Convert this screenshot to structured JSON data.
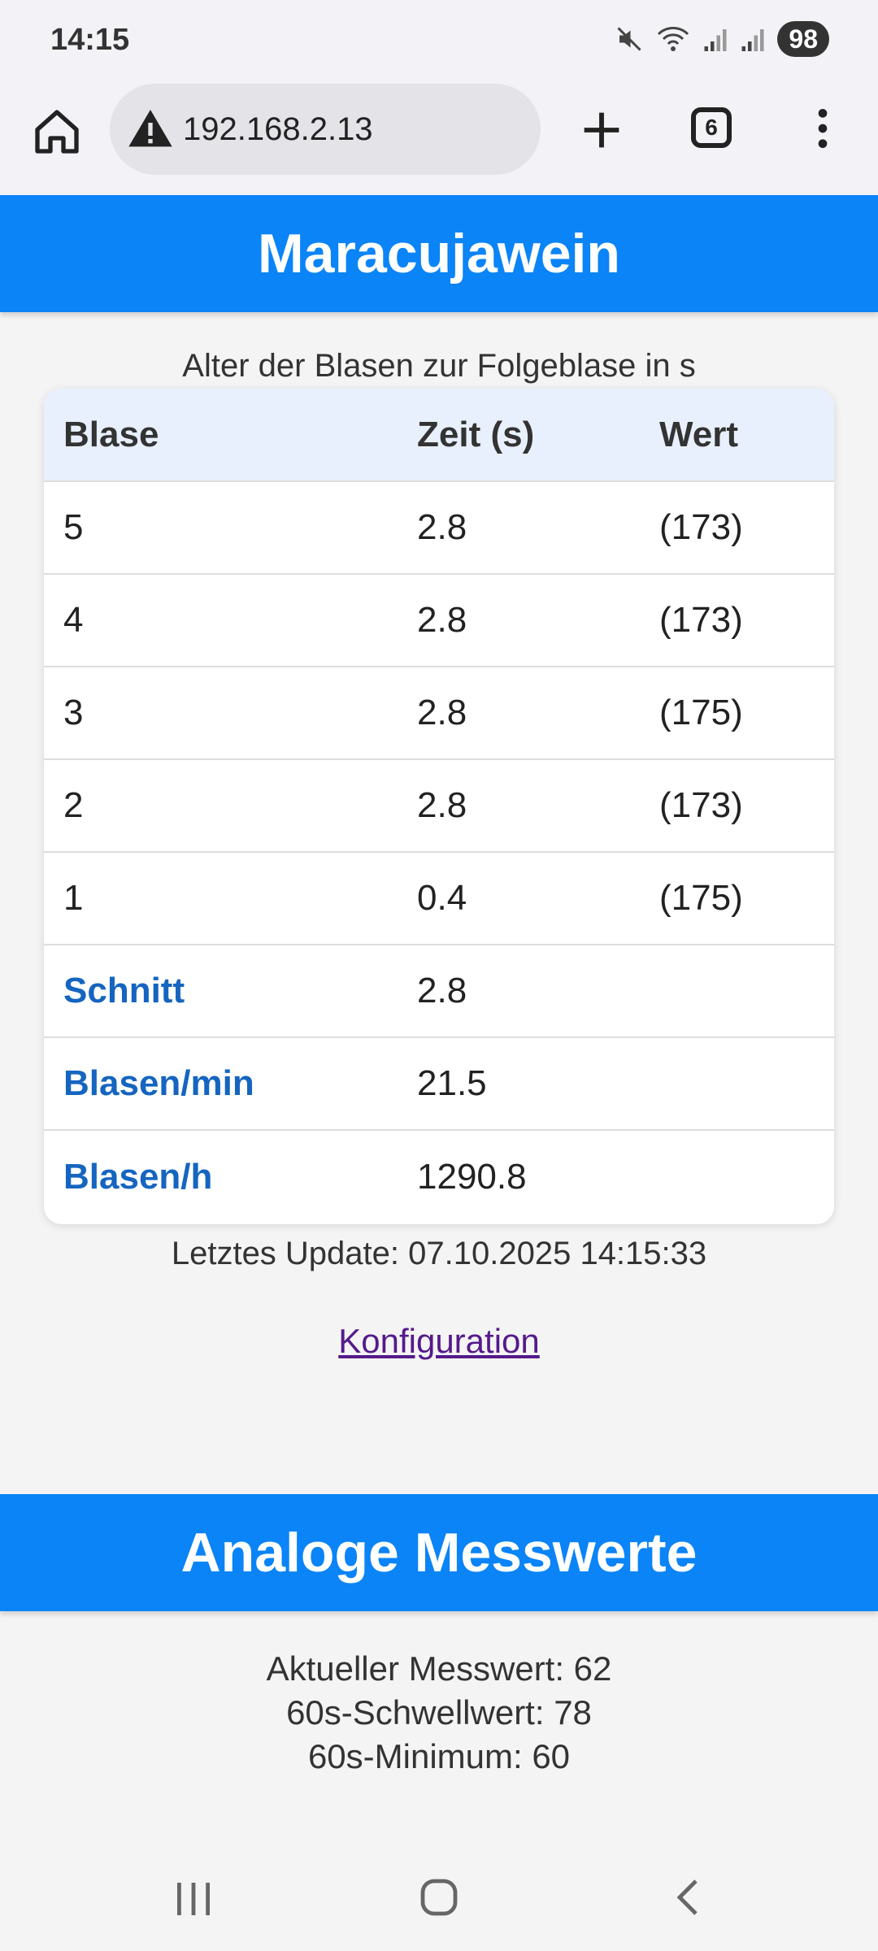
{
  "status": {
    "time": "14:15",
    "battery": "98"
  },
  "browser": {
    "url": "192.168.2.13",
    "tab_count": "6"
  },
  "section1": {
    "title": "Maracujawein",
    "caption": "Alter der Blasen zur Folgeblase in s",
    "table": {
      "headers": [
        "Blase",
        "Zeit (s)",
        "Wert"
      ],
      "rows": [
        [
          "5",
          "2.8",
          "(173)"
        ],
        [
          "4",
          "2.8",
          "(173)"
        ],
        [
          "3",
          "2.8",
          "(175)"
        ],
        [
          "2",
          "2.8",
          "(173)"
        ],
        [
          "1",
          "0.4",
          "(175)"
        ]
      ],
      "summary": [
        [
          "Schnitt",
          "2.8"
        ],
        [
          "Blasen/min",
          "21.5"
        ],
        [
          "Blasen/h",
          "1290.8"
        ]
      ]
    },
    "last_update": "Letztes Update: 07.10.2025 14:15:33",
    "config_link": "Konfiguration"
  },
  "section2": {
    "title": "Analoge Messwerte",
    "lines": [
      "Aktueller Messwert: 62",
      "60s-Schwellwert: 78",
      "60s-Minimum: 60"
    ]
  },
  "colors": {
    "header_blue": "#0a84f7",
    "label_blue": "#1565c0",
    "link_purple": "#551a8b"
  }
}
